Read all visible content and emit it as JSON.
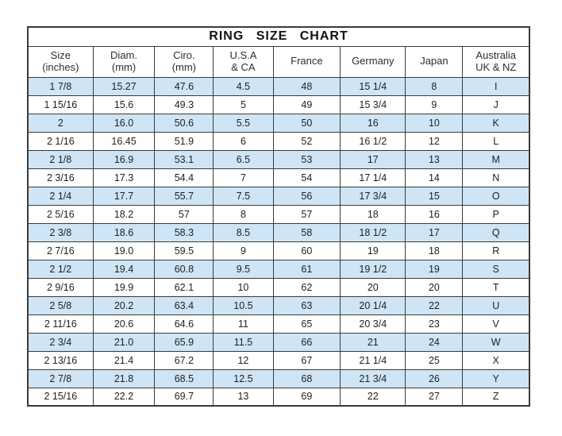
{
  "title": "RING  SIZE  CHART",
  "colors": {
    "row_alt": "#cfe5f5",
    "border": "#3a3a3a",
    "text": "#222222"
  },
  "chart_data": {
    "type": "table",
    "title": "RING SIZE CHART",
    "columns": [
      {
        "line1": "Size",
        "line2": "(inches)"
      },
      {
        "line1": "Diam.",
        "line2": "(mm)"
      },
      {
        "line1": "Ciro.",
        "line2": "(mm)"
      },
      {
        "line1": "U.S.A",
        "line2": "& CA"
      },
      {
        "line1": "France",
        "line2": ""
      },
      {
        "line1": "Germany",
        "line2": ""
      },
      {
        "line1": "Japan",
        "line2": ""
      },
      {
        "line1": "Australia",
        "line2": "UK & NZ"
      }
    ],
    "rows": [
      [
        "1 7/8",
        "15.27",
        "47.6",
        "4.5",
        "48",
        "15 1/4",
        "8",
        "I"
      ],
      [
        "1 15/16",
        "15.6",
        "49.3",
        "5",
        "49",
        "15 3/4",
        "9",
        "J"
      ],
      [
        "2",
        "16.0",
        "50.6",
        "5.5",
        "50",
        "16",
        "10",
        "K"
      ],
      [
        "2 1/16",
        "16.45",
        "51.9",
        "6",
        "52",
        "16 1/2",
        "12",
        "L"
      ],
      [
        "2 1/8",
        "16.9",
        "53.1",
        "6.5",
        "53",
        "17",
        "13",
        "M"
      ],
      [
        "2 3/16",
        "17.3",
        "54.4",
        "7",
        "54",
        "17 1/4",
        "14",
        "N"
      ],
      [
        "2 1/4",
        "17.7",
        "55.7",
        "7.5",
        "56",
        "17 3/4",
        "15",
        "O"
      ],
      [
        "2 5/16",
        "18.2",
        "57",
        "8",
        "57",
        "18",
        "16",
        "P"
      ],
      [
        "2 3/8",
        "18.6",
        "58.3",
        "8.5",
        "58",
        "18 1/2",
        "17",
        "Q"
      ],
      [
        "2 7/16",
        "19.0",
        "59.5",
        "9",
        "60",
        "19",
        "18",
        "R"
      ],
      [
        "2 1/2",
        "19.4",
        "60.8",
        "9.5",
        "61",
        "19 1/2",
        "19",
        "S"
      ],
      [
        "2 9/16",
        "19.9",
        "62.1",
        "10",
        "62",
        "20",
        "20",
        "T"
      ],
      [
        "2 5/8",
        "20.2",
        "63.4",
        "10.5",
        "63",
        "20 1/4",
        "22",
        "U"
      ],
      [
        "2 11/16",
        "20.6",
        "64.6",
        "11",
        "65",
        "20 3/4",
        "23",
        "V"
      ],
      [
        "2 3/4",
        "21.0",
        "65.9",
        "11.5",
        "66",
        "21",
        "24",
        "W"
      ],
      [
        "2 13/16",
        "21.4",
        "67.2",
        "12",
        "67",
        "21 1/4",
        "25",
        "X"
      ],
      [
        "2 7/8",
        "21.8",
        "68.5",
        "12.5",
        "68",
        "21 3/4",
        "26",
        "Y"
      ],
      [
        "2 15/16",
        "22.2",
        "69.7",
        "13",
        "69",
        "22",
        "27",
        "Z"
      ]
    ]
  }
}
